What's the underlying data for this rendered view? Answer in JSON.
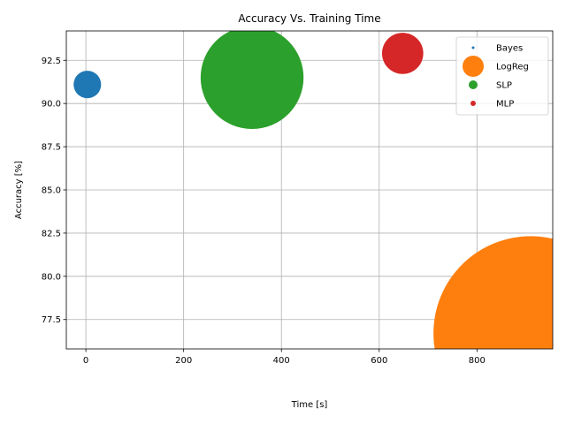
{
  "chart_data": {
    "type": "scatter",
    "title": "Accuracy Vs. Training Time",
    "xlabel": "Time [s]",
    "ylabel": "Accuracy [%]",
    "xlim": [
      -40,
      955
    ],
    "ylim": [
      75.8,
      94.2
    ],
    "xticks": [
      0,
      200,
      400,
      600,
      800
    ],
    "yticks": [
      77.5,
      80.0,
      82.5,
      85.0,
      87.5,
      90.0,
      92.5
    ],
    "xtick_labels": [
      "0",
      "200",
      "400",
      "600",
      "800"
    ],
    "ytick_labels": [
      "77.5",
      "80.0",
      "82.5",
      "85.0",
      "87.5",
      "90.0",
      "92.5"
    ],
    "grid": true,
    "legend_position": "top-right",
    "series": [
      {
        "name": "Bayes",
        "x": 3,
        "y": 91.1,
        "color": "#1f77b4",
        "relative_size": 0.02
      },
      {
        "name": "LogReg",
        "x": 910,
        "y": 76.7,
        "color": "#ff7f0e",
        "relative_size": 1.0
      },
      {
        "name": "SLP",
        "x": 340,
        "y": 91.5,
        "color": "#2ca02c",
        "relative_size": 0.28
      },
      {
        "name": "MLP",
        "x": 648,
        "y": 92.9,
        "color": "#d62728",
        "relative_size": 0.045
      }
    ]
  }
}
